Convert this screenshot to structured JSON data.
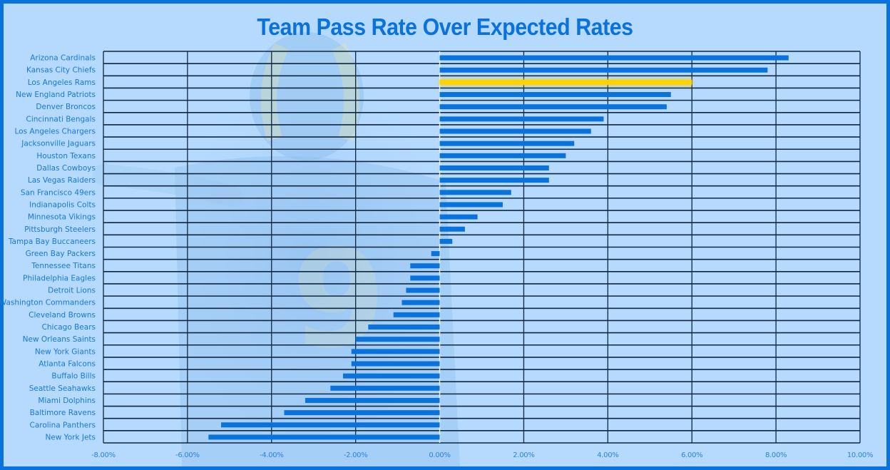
{
  "chart_data": {
    "type": "bar",
    "orientation": "horizontal",
    "title": "Team Pass Rate Over Expected Rates",
    "xlabel": "",
    "ylabel": "",
    "xlim": [
      -8,
      10
    ],
    "x_ticks": [
      -8,
      -6,
      -4,
      -2,
      0,
      2,
      4,
      6,
      8,
      10
    ],
    "x_tick_labels": [
      "-8.00%",
      "-6.00%",
      "-4.00%",
      "-2.00%",
      "0.00%",
      "2.00%",
      "4.00%",
      "6.00%",
      "8.00%",
      "10.00%"
    ],
    "value_unit": "percent",
    "grid": true,
    "legend": "none",
    "highlight": "Los Angeles Rams",
    "colors": {
      "bar": "#0a72dc",
      "highlight": "#ffd200",
      "grid": "#0f2742",
      "text": "#1878d8",
      "title": "#0a72dc",
      "panel": "#b5dafd",
      "frame": "#0a72dc"
    },
    "categories": [
      "Arizona Cardinals",
      "Kansas City Chiefs",
      "Los Angeles Rams",
      "New England Patriots",
      "Denver Broncos",
      "Cincinnati Bengals",
      "Los Angeles Chargers",
      "Jacksonville Jaguars",
      "Houston Texans",
      "Dallas Cowboys",
      "Las Vegas Raiders",
      "San Francisco 49ers",
      "Indianapolis Colts",
      "Minnesota Vikings",
      "Pittsburgh Steelers",
      "Tampa Bay Buccaneers",
      "Green Bay Packers",
      "Tennessee Titans",
      "Philadelphia Eagles",
      "Detroit Lions",
      "Washington Commanders",
      "Cleveland Browns",
      "Chicago Bears",
      "New Orleans Saints",
      "New York Giants",
      "Atlanta Falcons",
      "Buffalo Bills",
      "Seattle Seahawks",
      "Miami Dolphins",
      "Baltimore Ravens",
      "Carolina Panthers",
      "New York Jets"
    ],
    "values": [
      8.3,
      7.8,
      6.0,
      5.5,
      5.4,
      3.9,
      3.6,
      3.2,
      3.0,
      2.6,
      2.6,
      1.7,
      1.5,
      0.9,
      0.6,
      0.3,
      -0.2,
      -0.7,
      -0.7,
      -0.8,
      -0.9,
      -1.1,
      -1.7,
      -2.0,
      -2.1,
      -2.1,
      -2.3,
      -2.6,
      -3.2,
      -3.7,
      -5.2,
      -5.5
    ]
  }
}
